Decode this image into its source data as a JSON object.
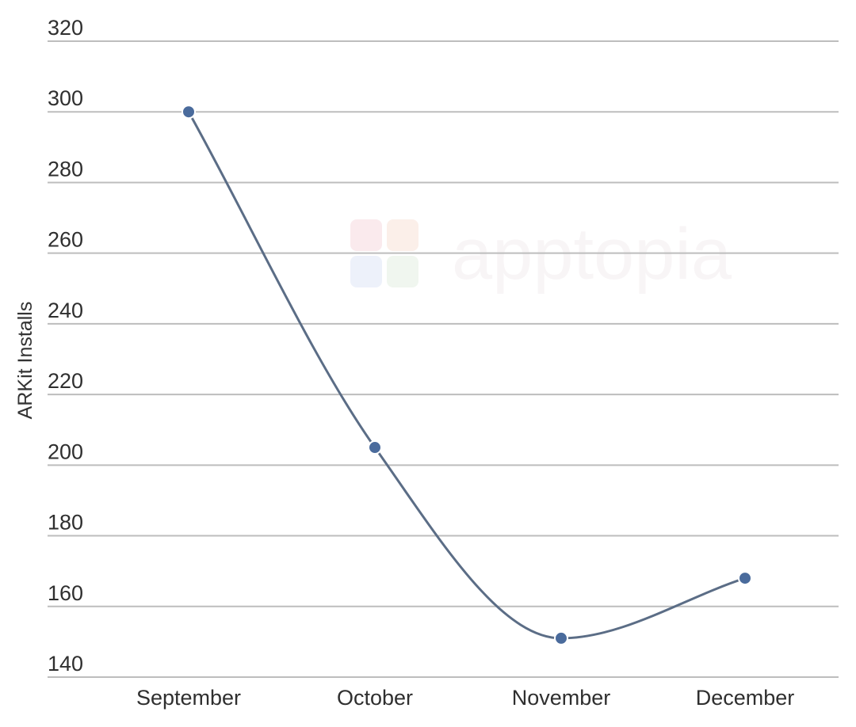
{
  "chart_data": {
    "type": "line",
    "categories": [
      "September",
      "October",
      "November",
      "December"
    ],
    "series": [
      {
        "values": [
          300,
          205,
          151,
          168
        ]
      }
    ],
    "title": "",
    "xlabel": "",
    "ylabel": "ARKit Installs",
    "ylim": [
      140,
      320
    ],
    "yticks": [
      140,
      160,
      180,
      200,
      220,
      240,
      260,
      280,
      300,
      320
    ],
    "grid": true,
    "smooth": true,
    "line_color": "#5b6d86",
    "point_color": "#4a6b9c",
    "grid_color": "#bdbdbd"
  },
  "watermark": {
    "text": "apptopia"
  }
}
